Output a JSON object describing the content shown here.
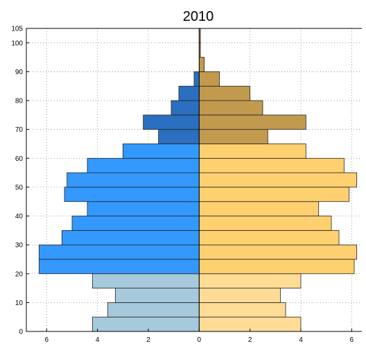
{
  "chart_data": {
    "type": "bar",
    "orientation": "horizontal",
    "title": "2010",
    "xlabel": "",
    "ylabel": "",
    "xlim": [
      -6.8,
      6.4
    ],
    "ylim": [
      0,
      105
    ],
    "grid": true,
    "y_ticks": [
      "0",
      "10",
      "20",
      "30",
      "40",
      "50",
      "60",
      "70",
      "80",
      "90",
      "100",
      "105"
    ],
    "x_ticks": [
      {
        "value": -6,
        "label": "6"
      },
      {
        "value": -4,
        "label": "4"
      },
      {
        "value": -2,
        "label": "2"
      },
      {
        "value": 0,
        "label": "0"
      },
      {
        "value": 2,
        "label": "2"
      },
      {
        "value": 4,
        "label": "4"
      },
      {
        "value": 6,
        "label": "6"
      }
    ],
    "age_groups": [
      0,
      5,
      10,
      15,
      20,
      25,
      30,
      35,
      40,
      45,
      50,
      55,
      60,
      65,
      70,
      75,
      80,
      85,
      90,
      95,
      100
    ],
    "bin_width": 5,
    "series": [
      {
        "side": "left",
        "values": [
          4.2,
          3.6,
          3.3,
          4.2,
          6.3,
          6.3,
          5.4,
          5.0,
          4.4,
          5.3,
          5.2,
          4.4,
          3.0,
          1.6,
          2.2,
          1.1,
          0.8,
          0.2,
          0.0,
          0.0,
          0.0
        ]
      },
      {
        "side": "right",
        "values": [
          4.0,
          3.4,
          3.2,
          4.0,
          6.1,
          6.2,
          5.5,
          5.2,
          4.7,
          5.9,
          6.2,
          5.7,
          4.2,
          2.7,
          4.2,
          2.5,
          2.0,
          0.8,
          0.2,
          0.05,
          0.05
        ]
      }
    ],
    "colors": {
      "left_young": "#a6cadc",
      "left_working": "#3399ff",
      "left_old": "#2a6fc0",
      "right_young": "#ffdc96",
      "right_working": "#ffd070",
      "right_old": "#c19a4e"
    }
  }
}
